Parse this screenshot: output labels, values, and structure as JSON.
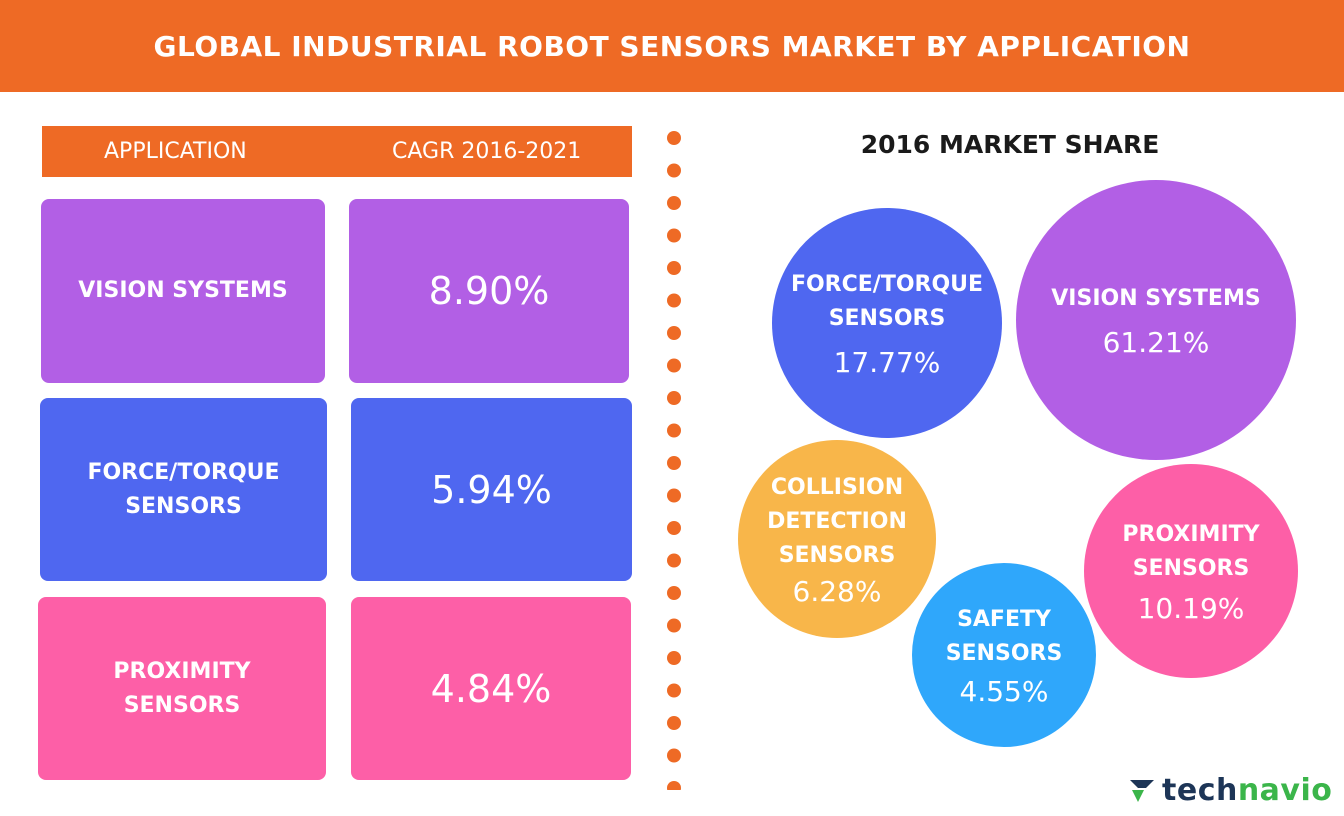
{
  "banner": {
    "title": "GLOBAL INDUSTRIAL ROBOT SENSORS MARKET BY APPLICATION"
  },
  "table": {
    "header_application": "APPLICATION",
    "header_cagr": "CAGR 2016-2021",
    "rows": [
      {
        "application": "VISION SYSTEMS",
        "cagr": "8.90%",
        "color": "#b25fe5"
      },
      {
        "application": "FORCE/TORQUE SENSORS",
        "cagr": "5.94%",
        "color": "#4f67f0"
      },
      {
        "application": "PROXIMITY SENSORS",
        "cagr": "4.84%",
        "color": "#fd5fa7"
      }
    ]
  },
  "market_share": {
    "title": "2016 MARKET SHARE",
    "bubbles": [
      {
        "label": "FORCE/TORQUE SENSORS",
        "value": "17.77%",
        "color": "#4f67f0"
      },
      {
        "label": "VISION SYSTEMS",
        "value": "61.21%",
        "color": "#b25fe5"
      },
      {
        "label": "COLLISION DETECTION SENSORS",
        "value": "6.28%",
        "color": "#f8b64a"
      },
      {
        "label": "SAFETY SENSORS",
        "value": "4.55%",
        "color": "#2fa7fb"
      },
      {
        "label": "PROXIMITY SENSORS",
        "value": "10.19%",
        "color": "#fd5fa7"
      }
    ]
  },
  "colors": {
    "accent": "#ee6a25",
    "logo_dark": "#1d3557",
    "logo_green": "#3bb54a"
  },
  "logo": {
    "part1": "tech",
    "part2": "navio"
  },
  "chart_data": [
    {
      "type": "table",
      "columns": [
        "APPLICATION",
        "CAGR 2016-2021"
      ],
      "rows": [
        [
          "VISION SYSTEMS",
          "8.90%"
        ],
        [
          "FORCE/TORQUE SENSORS",
          "5.94%"
        ],
        [
          "PROXIMITY SENSORS",
          "4.84%"
        ]
      ]
    },
    {
      "type": "pie",
      "title": "2016 MARKET SHARE",
      "categories": [
        "VISION SYSTEMS",
        "FORCE/TORQUE SENSORS",
        "PROXIMITY SENSORS",
        "COLLISION DETECTION SENSORS",
        "SAFETY SENSORS"
      ],
      "values": [
        61.21,
        17.77,
        10.19,
        6.28,
        4.55
      ],
      "unit": "%"
    }
  ]
}
